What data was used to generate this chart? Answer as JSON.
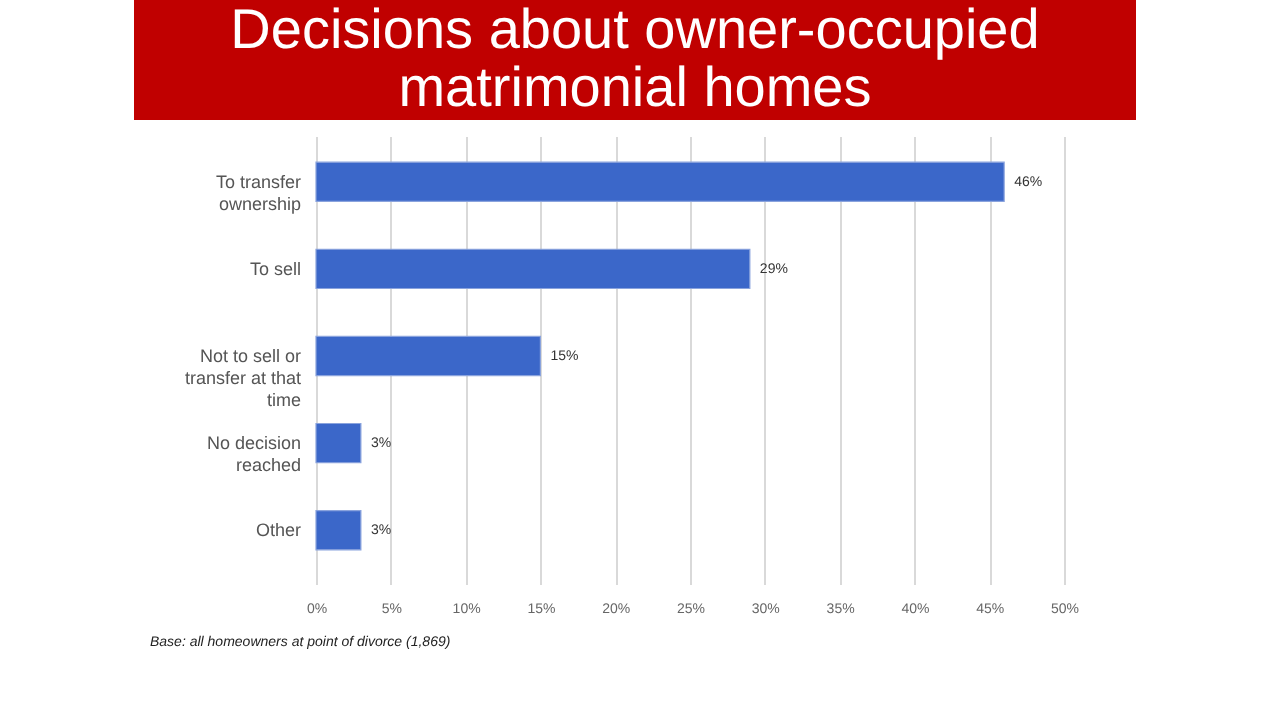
{
  "chart_data": {
    "type": "bar",
    "orientation": "horizontal",
    "title": "Decisions about owner-occupied matrimonial homes",
    "categories": [
      "To transfer ownership",
      "To sell",
      "Not to sell or transfer at that time",
      "No decision reached",
      "Other"
    ],
    "values": [
      46,
      29,
      15,
      3,
      3
    ],
    "value_labels": [
      "46%",
      "29%",
      "15%",
      "3%",
      "3%"
    ],
    "color": "#3b67c9",
    "xlim": [
      0,
      50
    ],
    "xticks": [
      {
        "value": 0,
        "label": "0%"
      },
      {
        "value": 5,
        "label": "5%"
      },
      {
        "value": 10,
        "label": "10%"
      },
      {
        "value": 15,
        "label": "15%"
      },
      {
        "value": 20,
        "label": "20%"
      },
      {
        "value": 25,
        "label": "25%"
      },
      {
        "value": 30,
        "label": "30%"
      },
      {
        "value": 35,
        "label": "35%"
      },
      {
        "value": 40,
        "label": "40%"
      },
      {
        "value": 45,
        "label": "45%"
      },
      {
        "value": 50,
        "label": "50%"
      }
    ],
    "grid": "x",
    "annotations": [
      "Base: all homeowners at point of divorce (1,869)"
    ]
  }
}
